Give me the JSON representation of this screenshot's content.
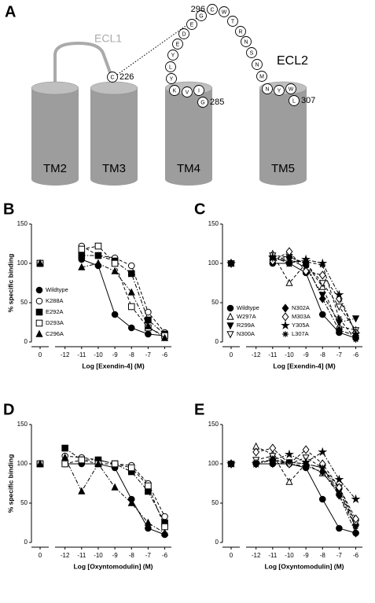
{
  "diagram": {
    "panel_label": "A",
    "tm_labels": [
      "TM2",
      "TM3",
      "TM4",
      "TM5"
    ],
    "ecl1": "ECL1",
    "ecl2": "ECL2",
    "ecl1_residue": {
      "letter": "C",
      "number": 226
    },
    "ecl2_residues": [
      {
        "letter": "G",
        "number": 285
      },
      {
        "letter": "I"
      },
      {
        "letter": "V"
      },
      {
        "letter": "K"
      },
      {
        "letter": "Y"
      },
      {
        "letter": "L"
      },
      {
        "letter": "Y"
      },
      {
        "letter": "E"
      },
      {
        "letter": "D"
      },
      {
        "letter": "E"
      },
      {
        "letter": "G"
      },
      {
        "letter": "C",
        "number": 296
      },
      {
        "letter": "W"
      },
      {
        "letter": "T"
      },
      {
        "letter": "R"
      },
      {
        "letter": "N"
      },
      {
        "letter": "S"
      },
      {
        "letter": "N"
      },
      {
        "letter": "M"
      },
      {
        "letter": "N"
      },
      {
        "letter": "Y"
      },
      {
        "letter": "W"
      },
      {
        "letter": "L",
        "number": 307
      }
    ]
  },
  "chart_data": [
    {
      "type": "line",
      "panel_label": "B",
      "x_label": "Log [Exendin-4] (M)",
      "y_label": "% specific binding",
      "x": [
        0,
        -11,
        -10,
        -9,
        -8,
        -7,
        -6
      ],
      "xlim": [
        -12.6,
        -5.6
      ],
      "xticks": [
        0,
        -12,
        -11,
        -10,
        -9,
        -8,
        -7,
        -6
      ],
      "ylim": [
        0,
        150
      ],
      "yticks": [
        0,
        50,
        100,
        150
      ],
      "legend": "lower left",
      "legend_columns": 1,
      "series": [
        {
          "name": "Wildtype",
          "color": "#000000",
          "marker": "circle",
          "dash": "solid",
          "values": [
            100,
            105,
            97,
            35,
            18,
            10,
            8
          ]
        },
        {
          "name": "K288A",
          "color": "#000000",
          "marker": "circle-open",
          "dash": "dashed",
          "values": [
            100,
            122,
            110,
            107,
            97,
            38,
            12
          ]
        },
        {
          "name": "E292A",
          "color": "#000000",
          "marker": "square",
          "dash": "dashdot",
          "values": [
            100,
            110,
            110,
            103,
            87,
            28,
            10
          ]
        },
        {
          "name": "D293A",
          "color": "#000000",
          "marker": "square-open",
          "dash": "dashed",
          "values": [
            100,
            118,
            122,
            100,
            45,
            18,
            8
          ]
        },
        {
          "name": "C296A",
          "color": "#000000",
          "marker": "triangle",
          "dash": "dashdot",
          "values": [
            100,
            95,
            100,
            90,
            63,
            20,
            5
          ]
        }
      ]
    },
    {
      "type": "line",
      "panel_label": "C",
      "x_label": "Log [Exendin-4] (M)",
      "x": [
        0,
        -11,
        -10,
        -9,
        -8,
        -7,
        -6
      ],
      "xlim": [
        -12.6,
        -5.6
      ],
      "xticks": [
        0,
        -12,
        -11,
        -10,
        -9,
        -8,
        -7,
        -6
      ],
      "ylim": [
        0,
        150
      ],
      "yticks": [
        0,
        50,
        100,
        150
      ],
      "legend": "lower left",
      "legend_columns": 2,
      "series": [
        {
          "name": "Wildtype",
          "color": "#000000",
          "marker": "circle",
          "dash": "solid",
          "values": [
            100,
            100,
            100,
            88,
            35,
            12,
            5
          ]
        },
        {
          "name": "W297A",
          "color": "#000000",
          "marker": "triangle-open",
          "dash": "dashed",
          "values": [
            100,
            112,
            75,
            100,
            70,
            20,
            15
          ]
        },
        {
          "name": "R299A",
          "color": "#000000",
          "marker": "triangle-down",
          "dash": "dashdot",
          "values": [
            100,
            105,
            105,
            95,
            60,
            25,
            30
          ]
        },
        {
          "name": "N300A",
          "color": "#000000",
          "marker": "triangle-down-open",
          "dash": "dashed",
          "values": [
            100,
            110,
            108,
            100,
            75,
            45,
            15
          ]
        },
        {
          "name": "N302A",
          "color": "#000000",
          "marker": "diamond",
          "dash": "dashdot",
          "values": [
            100,
            105,
            108,
            100,
            55,
            15,
            8
          ]
        },
        {
          "name": "M303A",
          "color": "#000000",
          "marker": "diamond-open",
          "dash": "dashed",
          "values": [
            100,
            103,
            115,
            90,
            85,
            55,
            12
          ]
        },
        {
          "name": "Y305A",
          "color": "#000000",
          "marker": "star",
          "dash": "dashdot",
          "values": [
            100,
            108,
            100,
            105,
            100,
            60,
            10
          ]
        },
        {
          "name": "L307A",
          "color": "#000000",
          "marker": "asterisk",
          "dash": "dashed",
          "values": [
            100,
            106,
            103,
            102,
            98,
            30,
            3
          ]
        }
      ]
    },
    {
      "type": "line",
      "panel_label": "D",
      "x_label": "Log [Oxyntomodulin] (M)",
      "y_label": "% specific binding",
      "x": [
        0,
        -12,
        -11,
        -10,
        -9,
        -8,
        -7,
        -6
      ],
      "xlim": [
        -12.6,
        -5.6
      ],
      "xticks": [
        0,
        -12,
        -11,
        -10,
        -9,
        -8,
        -7,
        -6
      ],
      "ylim": [
        0,
        150
      ],
      "yticks": [
        0,
        50,
        100,
        150
      ],
      "series": [
        {
          "color": "#000000",
          "marker": "circle",
          "dash": "solid",
          "values": [
            100,
            100,
            100,
            100,
            95,
            55,
            18,
            10
          ]
        },
        {
          "color": "#000000",
          "marker": "circle-open",
          "dash": "dashed",
          "values": [
            100,
            110,
            108,
            105,
            100,
            98,
            75,
            33
          ]
        },
        {
          "color": "#000000",
          "marker": "square",
          "dash": "dashdot",
          "values": [
            100,
            120,
            105,
            105,
            100,
            90,
            65,
            25
          ]
        },
        {
          "color": "#000000",
          "marker": "square-open",
          "dash": "dashed",
          "values": [
            100,
            100,
            105,
            100,
            100,
            95,
            72,
            20
          ]
        },
        {
          "color": "#000000",
          "marker": "triangle",
          "dash": "dashdot",
          "values": [
            100,
            108,
            65,
            100,
            70,
            50,
            25,
            12
          ]
        }
      ]
    },
    {
      "type": "line",
      "panel_label": "E",
      "x_label": "Log [Oxyntomodulin] (M)",
      "x": [
        0,
        -12,
        -11,
        -10,
        -9,
        -8,
        -7,
        -6
      ],
      "xlim": [
        -12.6,
        -5.6
      ],
      "xticks": [
        0,
        -12,
        -11,
        -10,
        -9,
        -8,
        -7,
        -6
      ],
      "ylim": [
        0,
        150
      ],
      "yticks": [
        0,
        50,
        100,
        150
      ],
      "series": [
        {
          "color": "#000000",
          "marker": "circle",
          "dash": "solid",
          "values": [
            100,
            100,
            100,
            100,
            95,
            55,
            18,
            12
          ]
        },
        {
          "color": "#000000",
          "marker": "triangle-open",
          "dash": "dashed",
          "values": [
            100,
            122,
            112,
            77,
            100,
            88,
            65,
            25
          ]
        },
        {
          "color": "#000000",
          "marker": "triangle-down",
          "dash": "dashdot",
          "values": [
            100,
            100,
            100,
            102,
            100,
            95,
            65,
            20
          ]
        },
        {
          "color": "#000000",
          "marker": "triangle-down-open",
          "dash": "dashed",
          "values": [
            100,
            105,
            110,
            100,
            108,
            95,
            70,
            25
          ]
        },
        {
          "color": "#000000",
          "marker": "diamond",
          "dash": "dashdot",
          "values": [
            100,
            100,
            105,
            100,
            97,
            90,
            60,
            12
          ]
        },
        {
          "color": "#000000",
          "marker": "diamond-open",
          "dash": "dashed",
          "values": [
            100,
            115,
            120,
            100,
            118,
            100,
            70,
            30
          ]
        },
        {
          "color": "#000000",
          "marker": "star",
          "dash": "dashdot",
          "values": [
            100,
            100,
            105,
            112,
            102,
            115,
            80,
            55
          ]
        },
        {
          "color": "#000000",
          "marker": "asterisk",
          "dash": "dashed",
          "values": [
            100,
            102,
            105,
            102,
            100,
            95,
            60,
            20
          ]
        }
      ]
    }
  ]
}
